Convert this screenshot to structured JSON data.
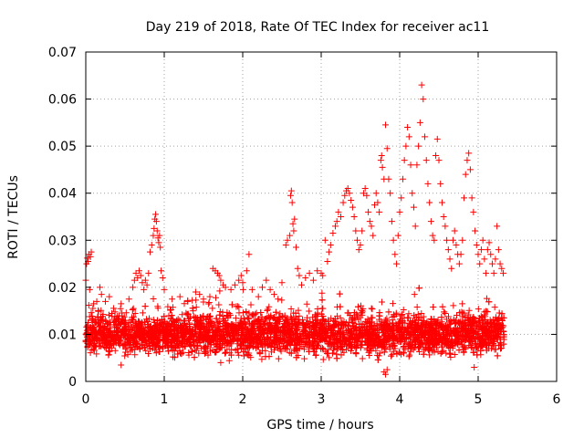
{
  "chart_data": {
    "type": "scatter",
    "title": "Day 219 of 2018, Rate Of TEC Index for receiver ac11",
    "xlabel": "GPS time / hours",
    "ylabel": "ROTI / TECUs",
    "xlim": [
      0,
      6
    ],
    "ylim": [
      0,
      0.07
    ],
    "x_ticks": [
      0,
      1,
      2,
      3,
      4,
      5,
      6
    ],
    "y_ticks": [
      0,
      0.01,
      0.02,
      0.03,
      0.04,
      0.05,
      0.06,
      0.07
    ],
    "x_tick_labels": [
      "0",
      "1",
      "2",
      "3",
      "4",
      "5",
      "6"
    ],
    "y_tick_labels": [
      "0",
      "0.01",
      "0.02",
      "0.03",
      "0.04",
      "0.05",
      "0.06",
      "0.07"
    ],
    "grid": true,
    "marker": "plus",
    "color": "#ff0000",
    "series": [
      {
        "name": "ROTI",
        "points": [
          [
            0.0,
            0.0215
          ],
          [
            0.01,
            0.025
          ],
          [
            0.02,
            0.0262
          ],
          [
            0.03,
            0.0255
          ],
          [
            0.04,
            0.027
          ],
          [
            0.06,
            0.0265
          ],
          [
            0.07,
            0.0275
          ],
          [
            0.05,
            0.0195
          ],
          [
            0.1,
            0.0165
          ],
          [
            0.14,
            0.017
          ],
          [
            0.18,
            0.02
          ],
          [
            0.2,
            0.0185
          ],
          [
            0.25,
            0.017
          ],
          [
            0.3,
            0.018
          ],
          [
            0.45,
            0.0165
          ],
          [
            0.55,
            0.0175
          ],
          [
            0.6,
            0.02
          ],
          [
            0.62,
            0.0215
          ],
          [
            0.64,
            0.023
          ],
          [
            0.66,
            0.022
          ],
          [
            0.68,
            0.0235
          ],
          [
            0.7,
            0.0225
          ],
          [
            0.72,
            0.021
          ],
          [
            0.74,
            0.0195
          ],
          [
            0.76,
            0.0215
          ],
          [
            0.78,
            0.0205
          ],
          [
            0.8,
            0.023
          ],
          [
            0.82,
            0.0275
          ],
          [
            0.84,
            0.029
          ],
          [
            0.86,
            0.031
          ],
          [
            0.87,
            0.0325
          ],
          [
            0.88,
            0.0345
          ],
          [
            0.89,
            0.0355
          ],
          [
            0.9,
            0.034
          ],
          [
            0.91,
            0.032
          ],
          [
            0.92,
            0.0305
          ],
          [
            0.93,
            0.0295
          ],
          [
            0.94,
            0.031
          ],
          [
            0.95,
            0.0285
          ],
          [
            0.96,
            0.0235
          ],
          [
            0.98,
            0.022
          ],
          [
            1.0,
            0.0195
          ],
          [
            1.1,
            0.0175
          ],
          [
            1.2,
            0.018
          ],
          [
            1.3,
            0.017
          ],
          [
            1.4,
            0.019
          ],
          [
            1.45,
            0.0185
          ],
          [
            1.5,
            0.0175
          ],
          [
            1.62,
            0.024
          ],
          [
            1.65,
            0.0235
          ],
          [
            1.68,
            0.023
          ],
          [
            1.7,
            0.0225
          ],
          [
            1.72,
            0.0215
          ],
          [
            1.75,
            0.0205
          ],
          [
            1.78,
            0.02
          ],
          [
            1.85,
            0.0195
          ],
          [
            1.9,
            0.0205
          ],
          [
            1.95,
            0.0215
          ],
          [
            1.98,
            0.0225
          ],
          [
            2.0,
            0.021
          ],
          [
            2.05,
            0.0235
          ],
          [
            2.08,
            0.027
          ],
          [
            2.12,
            0.0195
          ],
          [
            2.2,
            0.018
          ],
          [
            2.25,
            0.02
          ],
          [
            2.3,
            0.0215
          ],
          [
            2.35,
            0.0195
          ],
          [
            2.4,
            0.0185
          ],
          [
            2.45,
            0.0175
          ],
          [
            2.5,
            0.021
          ],
          [
            2.55,
            0.029
          ],
          [
            2.57,
            0.03
          ],
          [
            2.6,
            0.031
          ],
          [
            2.61,
            0.0395
          ],
          [
            2.62,
            0.0405
          ],
          [
            2.63,
            0.038
          ],
          [
            2.64,
            0.0335
          ],
          [
            2.65,
            0.032
          ],
          [
            2.66,
            0.0345
          ],
          [
            2.68,
            0.0285
          ],
          [
            2.7,
            0.024
          ],
          [
            2.72,
            0.0225
          ],
          [
            2.75,
            0.0205
          ],
          [
            2.8,
            0.022
          ],
          [
            2.85,
            0.023
          ],
          [
            2.9,
            0.0215
          ],
          [
            2.95,
            0.0235
          ],
          [
            3.0,
            0.023
          ],
          [
            3.02,
            0.0225
          ],
          [
            3.05,
            0.03
          ],
          [
            3.08,
            0.0255
          ],
          [
            3.1,
            0.0275
          ],
          [
            3.12,
            0.029
          ],
          [
            3.15,
            0.0315
          ],
          [
            3.18,
            0.033
          ],
          [
            3.2,
            0.034
          ],
          [
            3.22,
            0.036
          ],
          [
            3.25,
            0.035
          ],
          [
            3.28,
            0.038
          ],
          [
            3.3,
            0.0395
          ],
          [
            3.32,
            0.0405
          ],
          [
            3.34,
            0.041
          ],
          [
            3.36,
            0.04
          ],
          [
            3.38,
            0.0385
          ],
          [
            3.4,
            0.037
          ],
          [
            3.42,
            0.035
          ],
          [
            3.44,
            0.032
          ],
          [
            3.46,
            0.03
          ],
          [
            3.48,
            0.028
          ],
          [
            3.5,
            0.029
          ],
          [
            3.52,
            0.032
          ],
          [
            3.54,
            0.04
          ],
          [
            3.56,
            0.041
          ],
          [
            3.58,
            0.0395
          ],
          [
            3.6,
            0.036
          ],
          [
            3.62,
            0.034
          ],
          [
            3.64,
            0.033
          ],
          [
            3.66,
            0.031
          ],
          [
            3.68,
            0.0375
          ],
          [
            3.7,
            0.04
          ],
          [
            3.72,
            0.038
          ],
          [
            3.74,
            0.036
          ],
          [
            3.76,
            0.047
          ],
          [
            3.77,
            0.048
          ],
          [
            3.78,
            0.0455
          ],
          [
            3.8,
            0.043
          ],
          [
            3.82,
            0.0545
          ],
          [
            3.84,
            0.0495
          ],
          [
            3.86,
            0.043
          ],
          [
            3.88,
            0.04
          ],
          [
            3.9,
            0.034
          ],
          [
            3.92,
            0.03
          ],
          [
            3.94,
            0.027
          ],
          [
            3.96,
            0.025
          ],
          [
            3.98,
            0.031
          ],
          [
            4.0,
            0.036
          ],
          [
            4.02,
            0.039
          ],
          [
            4.04,
            0.043
          ],
          [
            4.06,
            0.047
          ],
          [
            4.08,
            0.05
          ],
          [
            4.1,
            0.054
          ],
          [
            4.12,
            0.052
          ],
          [
            4.14,
            0.046
          ],
          [
            4.16,
            0.04
          ],
          [
            4.18,
            0.037
          ],
          [
            4.2,
            0.033
          ],
          [
            4.22,
            0.046
          ],
          [
            4.24,
            0.05
          ],
          [
            4.26,
            0.055
          ],
          [
            4.28,
            0.063
          ],
          [
            4.3,
            0.06
          ],
          [
            4.32,
            0.052
          ],
          [
            4.34,
            0.047
          ],
          [
            4.36,
            0.042
          ],
          [
            4.38,
            0.038
          ],
          [
            4.4,
            0.034
          ],
          [
            4.42,
            0.031
          ],
          [
            4.44,
            0.03
          ],
          [
            4.46,
            0.048
          ],
          [
            4.48,
            0.0515
          ],
          [
            4.5,
            0.047
          ],
          [
            4.52,
            0.042
          ],
          [
            4.54,
            0.038
          ],
          [
            4.56,
            0.035
          ],
          [
            4.58,
            0.033
          ],
          [
            4.6,
            0.03
          ],
          [
            4.62,
            0.028
          ],
          [
            4.64,
            0.026
          ],
          [
            4.66,
            0.024
          ],
          [
            4.68,
            0.03
          ],
          [
            4.7,
            0.032
          ],
          [
            4.72,
            0.029
          ],
          [
            4.74,
            0.027
          ],
          [
            4.76,
            0.025
          ],
          [
            4.78,
            0.027
          ],
          [
            4.8,
            0.03
          ],
          [
            4.82,
            0.039
          ],
          [
            4.84,
            0.044
          ],
          [
            4.86,
            0.047
          ],
          [
            4.88,
            0.0485
          ],
          [
            4.9,
            0.045
          ],
          [
            4.92,
            0.039
          ],
          [
            4.94,
            0.036
          ],
          [
            4.96,
            0.032
          ],
          [
            4.98,
            0.029
          ],
          [
            5.0,
            0.027
          ],
          [
            5.02,
            0.025
          ],
          [
            5.04,
            0.028
          ],
          [
            5.06,
            0.03
          ],
          [
            5.08,
            0.026
          ],
          [
            5.1,
            0.023
          ],
          [
            5.12,
            0.028
          ],
          [
            5.14,
            0.0295
          ],
          [
            5.16,
            0.027
          ],
          [
            5.18,
            0.025
          ],
          [
            5.2,
            0.023
          ],
          [
            5.22,
            0.026
          ],
          [
            5.24,
            0.033
          ],
          [
            5.26,
            0.028
          ],
          [
            5.28,
            0.025
          ],
          [
            5.3,
            0.024
          ],
          [
            5.32,
            0.023
          ],
          [
            3.8,
            0.002
          ],
          [
            3.82,
            0.0015
          ],
          [
            3.84,
            0.0025
          ],
          [
            1.72,
            0.004
          ],
          [
            0.45,
            0.0035
          ],
          [
            4.95,
            0.003
          ]
        ],
        "baseline": {
          "x_range": [
            0,
            5.33
          ],
          "typical_range": [
            0.004,
            0.016
          ],
          "dense_center": 0.0085
        }
      }
    ]
  }
}
